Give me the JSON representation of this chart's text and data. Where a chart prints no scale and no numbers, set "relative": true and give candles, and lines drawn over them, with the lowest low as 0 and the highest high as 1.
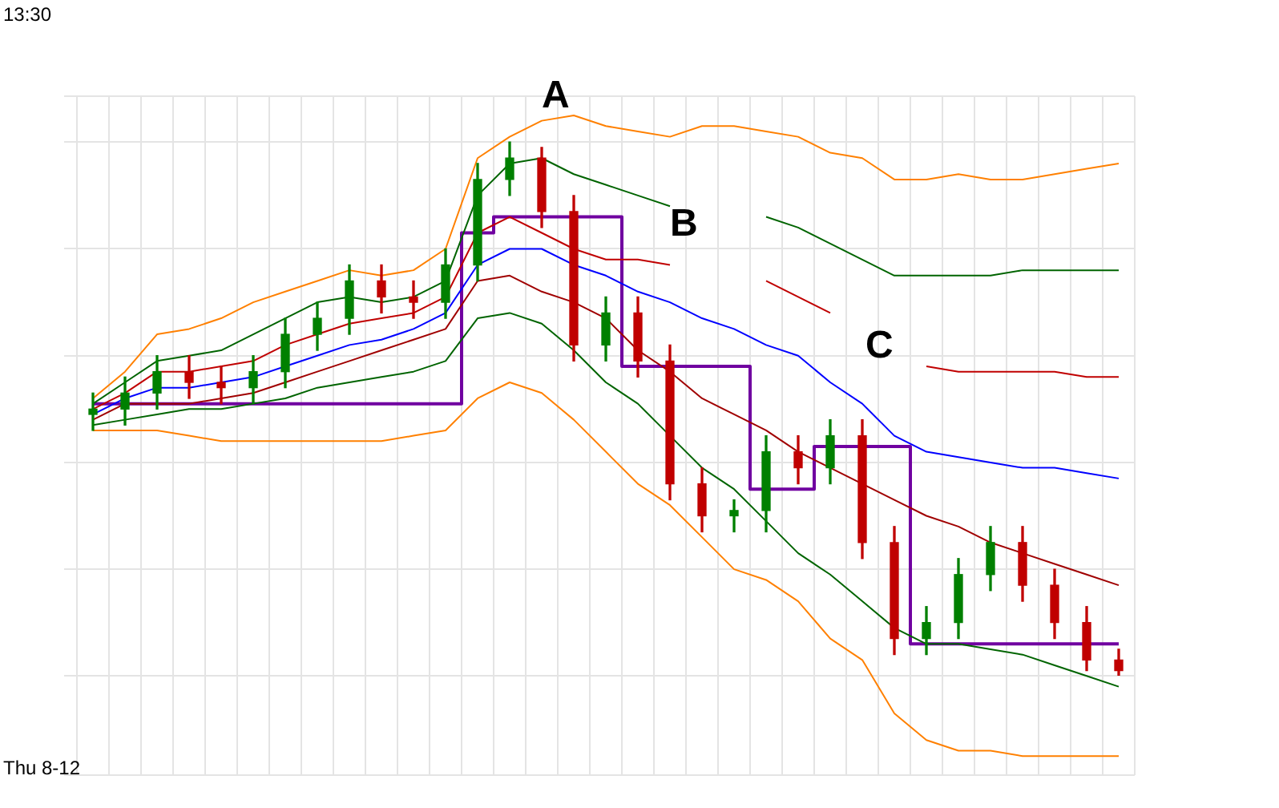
{
  "chart_data": {
    "type": "candlestick",
    "relative": true,
    "grid": true,
    "legend": false,
    "marker": "none",
    "line_style": "solid",
    "categories": [
      null,
      null,
      null,
      null,
      null,
      null,
      null,
      null,
      null,
      null,
      null,
      null,
      null,
      null,
      null,
      null,
      null,
      null,
      null,
      null,
      null,
      null,
      null,
      null,
      null,
      null,
      null,
      null,
      null,
      null,
      null,
      null,
      null
    ],
    "ohlc": [
      [
        0.49,
        0.53,
        0.46,
        0.5
      ],
      [
        0.5,
        0.56,
        0.47,
        0.53
      ],
      [
        0.53,
        0.6,
        0.5,
        0.57
      ],
      [
        0.57,
        0.6,
        0.52,
        0.55
      ],
      [
        0.55,
        0.58,
        0.51,
        0.54
      ],
      [
        0.54,
        0.6,
        0.51,
        0.57
      ],
      [
        0.57,
        0.67,
        0.54,
        0.64
      ],
      [
        0.64,
        0.7,
        0.61,
        0.67
      ],
      [
        0.67,
        0.77,
        0.64,
        0.74
      ],
      [
        0.74,
        0.77,
        0.68,
        0.71
      ],
      [
        0.71,
        0.74,
        0.67,
        0.7
      ],
      [
        0.7,
        0.8,
        0.67,
        0.77
      ],
      [
        0.77,
        0.96,
        0.74,
        0.93
      ],
      [
        0.93,
        1.0,
        0.9,
        0.97
      ],
      [
        0.97,
        0.99,
        0.84,
        0.87
      ],
      [
        0.87,
        0.9,
        0.59,
        0.62
      ],
      [
        0.62,
        0.71,
        0.59,
        0.68
      ],
      [
        0.68,
        0.71,
        0.56,
        0.59
      ],
      [
        0.59,
        0.62,
        0.33,
        0.36
      ],
      [
        0.36,
        0.39,
        0.27,
        0.3
      ],
      [
        0.3,
        0.33,
        0.27,
        0.31
      ],
      [
        0.31,
        0.45,
        0.27,
        0.42
      ],
      [
        0.42,
        0.45,
        0.36,
        0.39
      ],
      [
        0.39,
        0.48,
        0.36,
        0.45
      ],
      [
        0.45,
        0.48,
        0.22,
        0.25
      ],
      [
        0.25,
        0.28,
        0.04,
        0.07
      ],
      [
        0.07,
        0.13,
        0.04,
        0.1
      ],
      [
        0.1,
        0.22,
        0.07,
        0.19
      ],
      [
        0.19,
        0.28,
        0.16,
        0.25
      ],
      [
        0.25,
        0.28,
        0.14,
        0.17
      ],
      [
        0.17,
        0.2,
        0.07,
        0.1
      ],
      [
        0.1,
        0.13,
        0.01,
        0.03
      ],
      [
        0.03,
        0.05,
        0.0,
        0.01
      ]
    ],
    "colors": [
      "#008000",
      "#008000",
      "#008000",
      "#c00000",
      "#c00000",
      "#008000",
      "#008000",
      "#008000",
      "#008000",
      "#c00000",
      "#c00000",
      "#008000",
      "#008000",
      "#008000",
      "#c00000",
      "#c00000",
      "#008000",
      "#c00000",
      "#c00000",
      "#c00000",
      "#008000",
      "#008000",
      "#c00000",
      "#008000",
      "#c00000",
      "#c00000",
      "#008000",
      "#008000",
      "#008000",
      "#c00000",
      "#c00000",
      "#c00000",
      "#c00000"
    ],
    "series": [
      {
        "type": "line",
        "color": "#ff8000",
        "values": [
          0.52,
          0.57,
          0.64,
          0.65,
          0.67,
          0.7,
          0.72,
          0.74,
          0.76,
          0.75,
          0.76,
          0.8,
          0.97,
          1.01,
          1.04,
          1.05,
          1.03,
          1.02,
          1.01,
          1.03,
          1.03,
          1.02,
          1.01,
          0.98,
          0.97,
          0.93,
          0.93,
          0.94,
          0.93,
          0.93,
          0.94,
          0.95,
          0.96
        ]
      },
      {
        "type": "line",
        "color": "#006400",
        "values": [
          0.51,
          0.55,
          0.59,
          0.6,
          0.61,
          0.64,
          0.67,
          0.7,
          0.71,
          0.7,
          0.71,
          0.74,
          0.9,
          0.96,
          0.97,
          0.94,
          0.92,
          0.9,
          0.88,
          null,
          null,
          0.86,
          0.84,
          0.81,
          0.78,
          0.75,
          0.75,
          0.75,
          0.75,
          0.76,
          0.76,
          0.76,
          0.76
        ]
      },
      {
        "type": "line",
        "color": "#c00000",
        "values": [
          0.5,
          0.53,
          0.57,
          0.57,
          0.58,
          0.59,
          0.62,
          0.64,
          0.66,
          0.67,
          0.68,
          0.71,
          0.83,
          0.86,
          0.83,
          0.8,
          0.78,
          0.78,
          0.77,
          null,
          null,
          0.74,
          0.71,
          0.68,
          null,
          null,
          0.58,
          0.57,
          0.57,
          0.57,
          0.57,
          0.56,
          0.56
        ]
      },
      {
        "type": "line",
        "color": "#0000ff",
        "values": [
          0.49,
          0.52,
          0.54,
          0.54,
          0.55,
          0.56,
          0.58,
          0.6,
          0.62,
          0.63,
          0.65,
          0.68,
          0.77,
          0.8,
          0.8,
          0.77,
          0.75,
          0.72,
          0.7,
          0.67,
          0.65,
          0.62,
          0.6,
          0.55,
          0.51,
          0.45,
          0.42,
          0.41,
          0.4,
          0.39,
          0.39,
          0.38,
          0.37
        ]
      },
      {
        "type": "line",
        "color": "#a00000",
        "values": [
          0.48,
          0.51,
          0.51,
          0.51,
          0.52,
          0.53,
          0.55,
          0.57,
          0.59,
          0.61,
          0.63,
          0.65,
          0.74,
          0.75,
          0.72,
          0.7,
          0.67,
          0.61,
          0.57,
          0.52,
          0.49,
          0.46,
          0.42,
          0.39,
          0.36,
          0.33,
          0.3,
          0.28,
          0.25,
          0.23,
          0.21,
          0.19,
          0.17
        ]
      },
      {
        "type": "line",
        "color": "#006400",
        "values": [
          0.47,
          0.48,
          0.49,
          0.5,
          0.5,
          0.51,
          0.52,
          0.54,
          0.55,
          0.56,
          0.57,
          0.59,
          0.67,
          0.68,
          0.66,
          0.61,
          0.55,
          0.51,
          0.45,
          0.39,
          0.35,
          0.29,
          0.23,
          0.19,
          0.14,
          0.09,
          0.06,
          0.06,
          0.05,
          0.04,
          0.02,
          0.0,
          -0.02
        ]
      },
      {
        "type": "line",
        "color": "#ff8000",
        "values": [
          0.46,
          0.46,
          0.46,
          0.45,
          0.44,
          0.44,
          0.44,
          0.44,
          0.44,
          0.44,
          0.45,
          0.46,
          0.52,
          0.55,
          0.53,
          0.48,
          0.42,
          0.36,
          0.32,
          0.26,
          0.2,
          0.18,
          0.14,
          0.07,
          0.03,
          -0.07,
          -0.12,
          -0.14,
          -0.14,
          -0.15,
          -0.15,
          -0.15,
          -0.15
        ]
      },
      {
        "type": "step",
        "color": "#7000a0",
        "values": [
          0.51,
          0.51,
          0.51,
          0.51,
          0.51,
          0.51,
          0.51,
          0.51,
          0.51,
          0.51,
          0.51,
          0.51,
          0.83,
          0.86,
          0.86,
          0.86,
          0.86,
          0.58,
          0.58,
          0.58,
          0.58,
          0.35,
          0.35,
          0.43,
          0.43,
          0.43,
          0.06,
          0.06,
          0.06,
          0.06,
          0.06,
          0.06,
          0.06
        ]
      }
    ],
    "annotations": [
      "13:30",
      "Thu 8-12",
      "A",
      "B",
      "C"
    ]
  }
}
